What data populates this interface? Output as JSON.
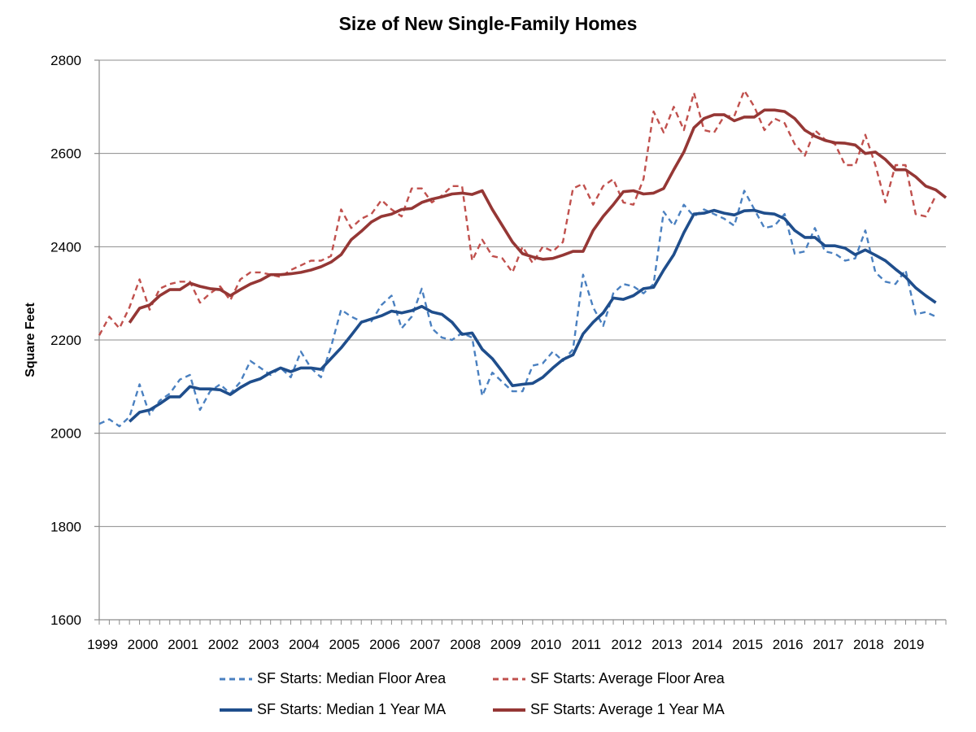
{
  "chart_data": {
    "type": "line",
    "title": "Size of New Single-Family Homes",
    "ylabel": "Square Feet",
    "xlabel": "",
    "ylim": [
      1600,
      2800
    ],
    "yticks": [
      1600,
      1800,
      2000,
      2200,
      2400,
      2600,
      2800
    ],
    "xticks": [
      "1999",
      "2000",
      "2001",
      "2002",
      "2003",
      "2004",
      "2005",
      "2006",
      "2007",
      "2008",
      "2009",
      "2010",
      "2011",
      "2012",
      "2013",
      "2014",
      "2015",
      "2016",
      "2017",
      "2018",
      "2019"
    ],
    "x_start": 1999,
    "x_step": 0.25,
    "grid": true,
    "legend_position": "bottom",
    "colors": {
      "median": "#4a80c0",
      "average": "#c0504d",
      "median_ma": "#1f4e8c",
      "average_ma": "#953735",
      "grid": "#8c8c8c",
      "axis": "#8c8c8c"
    },
    "series": [
      {
        "name": "SF Starts: Median Floor Area",
        "style": "dashed",
        "colorKey": "median",
        "start": 1999.0,
        "values": [
          2020,
          2030,
          2015,
          2035,
          2105,
          2040,
          2070,
          2085,
          2115,
          2125,
          2050,
          2090,
          2105,
          2085,
          2110,
          2155,
          2140,
          2125,
          2140,
          2120,
          2175,
          2140,
          2120,
          2185,
          2265,
          2250,
          2240,
          2240,
          2275,
          2295,
          2225,
          2250,
          2310,
          2225,
          2205,
          2200,
          2215,
          2205,
          2080,
          2130,
          2110,
          2090,
          2090,
          2145,
          2150,
          2175,
          2155,
          2180,
          2340,
          2270,
          2230,
          2300,
          2320,
          2315,
          2300,
          2320,
          2475,
          2445,
          2490,
          2465,
          2480,
          2470,
          2460,
          2445,
          2520,
          2480,
          2440,
          2445,
          2470,
          2385,
          2390,
          2440,
          2390,
          2385,
          2370,
          2375,
          2435,
          2345,
          2325,
          2320,
          2350,
          2255,
          2260,
          2250
        ]
      },
      {
        "name": "SF Starts: Average Floor Area",
        "style": "dashed",
        "colorKey": "average",
        "start": 1999.0,
        "values": [
          2210,
          2250,
          2225,
          2270,
          2330,
          2265,
          2310,
          2320,
          2325,
          2325,
          2280,
          2300,
          2315,
          2285,
          2330,
          2345,
          2345,
          2340,
          2335,
          2350,
          2360,
          2370,
          2370,
          2380,
          2480,
          2440,
          2460,
          2470,
          2500,
          2480,
          2465,
          2525,
          2525,
          2495,
          2510,
          2530,
          2530,
          2370,
          2415,
          2380,
          2375,
          2345,
          2400,
          2365,
          2400,
          2390,
          2410,
          2525,
          2535,
          2490,
          2530,
          2545,
          2495,
          2490,
          2545,
          2690,
          2645,
          2700,
          2650,
          2730,
          2650,
          2645,
          2680,
          2680,
          2735,
          2700,
          2650,
          2675,
          2665,
          2620,
          2595,
          2650,
          2630,
          2620,
          2575,
          2575,
          2640,
          2575,
          2495,
          2575,
          2575,
          2470,
          2465,
          2510
        ]
      },
      {
        "name": "SF Starts: Median 1 Year MA",
        "style": "solid",
        "colorKey": "median_ma",
        "start": 1999.75,
        "values": [
          2025,
          2045,
          2050,
          2063,
          2078,
          2078,
          2100,
          2095,
          2095,
          2093,
          2083,
          2098,
          2110,
          2117,
          2130,
          2140,
          2132,
          2140,
          2140,
          2137,
          2160,
          2183,
          2210,
          2238,
          2245,
          2252,
          2262,
          2258,
          2263,
          2272,
          2260,
          2255,
          2238,
          2212,
          2215,
          2180,
          2160,
          2132,
          2102,
          2105,
          2107,
          2120,
          2140,
          2158,
          2168,
          2213,
          2238,
          2258,
          2290,
          2287,
          2295,
          2310,
          2313,
          2350,
          2383,
          2430,
          2470,
          2472,
          2478,
          2472,
          2468,
          2477,
          2478,
          2472,
          2470,
          2460,
          2435,
          2420,
          2420,
          2402,
          2402,
          2397,
          2383,
          2393,
          2382,
          2370,
          2352,
          2335,
          2312,
          2295,
          2280
        ]
      },
      {
        "name": "SF Starts: Average 1 Year MA",
        "style": "solid",
        "colorKey": "average_ma",
        "start": 1999.75,
        "values": [
          2237,
          2268,
          2275,
          2295,
          2308,
          2308,
          2322,
          2315,
          2310,
          2308,
          2295,
          2308,
          2320,
          2328,
          2340,
          2340,
          2342,
          2345,
          2350,
          2357,
          2367,
          2383,
          2415,
          2433,
          2453,
          2465,
          2470,
          2480,
          2482,
          2495,
          2502,
          2507,
          2513,
          2515,
          2512,
          2520,
          2480,
          2445,
          2410,
          2385,
          2378,
          2373,
          2375,
          2382,
          2390,
          2390,
          2435,
          2465,
          2490,
          2518,
          2520,
          2513,
          2515,
          2525,
          2565,
          2603,
          2655,
          2675,
          2683,
          2683,
          2670,
          2678,
          2678,
          2693,
          2693,
          2690,
          2675,
          2650,
          2637,
          2628,
          2623,
          2622,
          2618,
          2600,
          2603,
          2587,
          2565,
          2565,
          2550,
          2530,
          2522,
          2505
        ]
      }
    ]
  }
}
